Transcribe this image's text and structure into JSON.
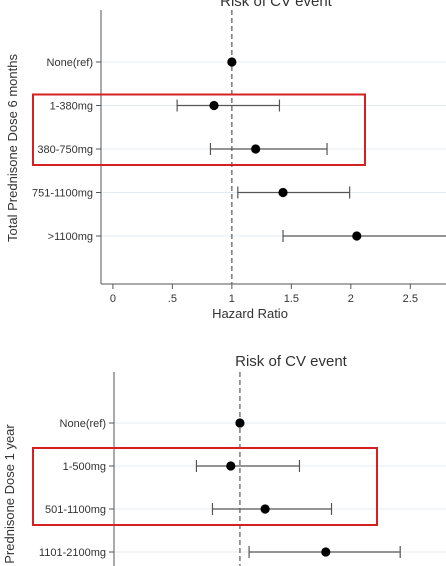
{
  "chart_data": [
    {
      "type": "scatter",
      "subtype": "forest-plot",
      "title": "Risk of CV event",
      "xlabel": "Hazard Ratio",
      "ylabel": "Total Prednisone Dose 6 months",
      "xlim": [
        -0.1,
        2.8
      ],
      "x_ticks": [
        0,
        0.5,
        1,
        1.5,
        2,
        2.5
      ],
      "x_tick_labels": [
        "0",
        ".5",
        "1",
        "1.5",
        "2",
        "2.5"
      ],
      "reference_line": 1,
      "grid": "horizontal",
      "categories": [
        "None(ref)",
        "1-380mg",
        "380-750mg",
        "751-1100mg",
        ">1100mg"
      ],
      "estimates": [
        {
          "label": "None(ref)",
          "hr": 1.0,
          "ci": null
        },
        {
          "label": "1-380mg",
          "hr": 0.85,
          "ci": [
            0.54,
            1.4
          ]
        },
        {
          "label": "380-750mg",
          "hr": 1.2,
          "ci": [
            0.82,
            1.8
          ]
        },
        {
          "label": "751-1100mg",
          "hr": 1.43,
          "ci": [
            1.05,
            1.99
          ]
        },
        {
          "label": ">1100mg",
          "hr": 2.05,
          "ci": [
            1.43,
            2.85
          ]
        }
      ],
      "highlighted": [
        "1-380mg",
        "380-750mg"
      ],
      "highlight_color": "#d42020"
    },
    {
      "type": "scatter",
      "subtype": "forest-plot",
      "title": "Risk of CV event",
      "xlabel": "",
      "ylabel": "Prednisone Dose 1 year",
      "xlim": [
        -0.1,
        2.8
      ],
      "reference_line": 1,
      "grid": "horizontal",
      "categories": [
        "None(ref)",
        "1-500mg",
        "501-1100mg",
        "1101-2100mg"
      ],
      "estimates": [
        {
          "label": "None(ref)",
          "hr": 1.0,
          "ci": null
        },
        {
          "label": "1-500mg",
          "hr": 0.92,
          "ci": [
            0.62,
            1.52
          ]
        },
        {
          "label": "501-1100mg",
          "hr": 1.22,
          "ci": [
            0.76,
            1.8
          ]
        },
        {
          "label": "1101-2100mg",
          "hr": 1.75,
          "ci": [
            1.08,
            2.4
          ]
        }
      ],
      "highlighted": [
        "1-500mg",
        "501-1100mg"
      ],
      "highlight_color": "#d42020"
    }
  ]
}
